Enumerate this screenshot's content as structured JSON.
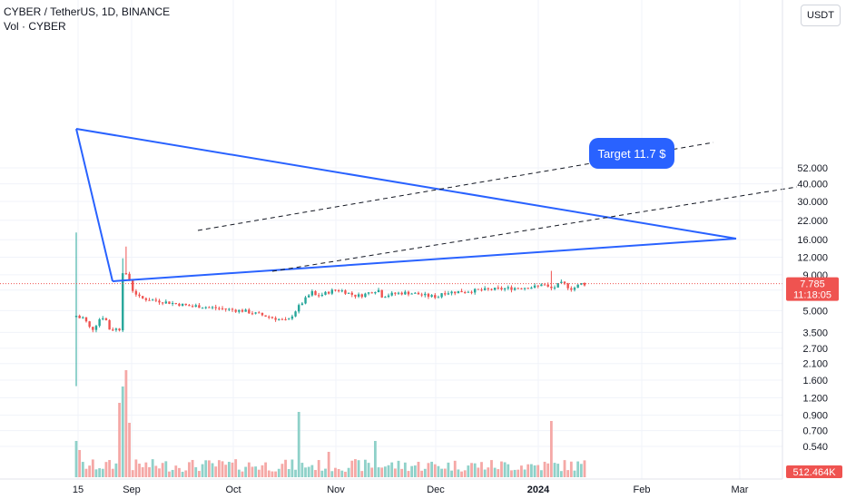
{
  "header": {
    "symbol_line": "CYBER / TetherUS, 1D, BINANCE",
    "volume_line": "Vol · CYBER"
  },
  "price_axis": {
    "currency_button": "USDT",
    "ticks": [
      "52.000",
      "40.000",
      "30.000",
      "22.000",
      "16.000",
      "12.000",
      "9.000",
      "7.000",
      "5.000",
      "3.500",
      "2.700",
      "2.100",
      "1.600",
      "1.200",
      "0.900",
      "0.700",
      "0.540"
    ],
    "last_price": "7.785",
    "countdown": "11:18:05",
    "volume_value": "512.464K"
  },
  "time_axis": {
    "ticks": [
      "15",
      "Sep",
      "Oct",
      "Nov",
      "Dec",
      "2024",
      "Feb",
      "Mar"
    ]
  },
  "annotation": {
    "target_label": "Target 11.7 $"
  },
  "colors": {
    "up": "#26a69a",
    "down": "#ef5350",
    "up_volume": "#8fd1c9",
    "down_volume": "#f5a8a6",
    "trendline": "#2962ff",
    "channel": "#131722",
    "target_bg": "#2962ff",
    "price_line": "#ef5350",
    "grid": "#f0f3fa"
  },
  "chart_data": {
    "type": "candlestick",
    "title": "CYBER / TetherUS, 1D, BINANCE",
    "y_scale": "log",
    "ylim": [
      0.5,
      60
    ],
    "last_price": 7.785,
    "last_volume": "512.464K",
    "x_labels": [
      "15",
      "Sep",
      "Oct",
      "Nov",
      "Dec",
      "2024",
      "Feb",
      "Mar"
    ],
    "key_prices": {
      "listing_high": 18.0,
      "listing_low": 1.45,
      "sep_spike_high": 14.3,
      "triangle_apex": 5.7,
      "target": 11.7
    },
    "annotations": [
      "Target 11.7 $"
    ]
  }
}
